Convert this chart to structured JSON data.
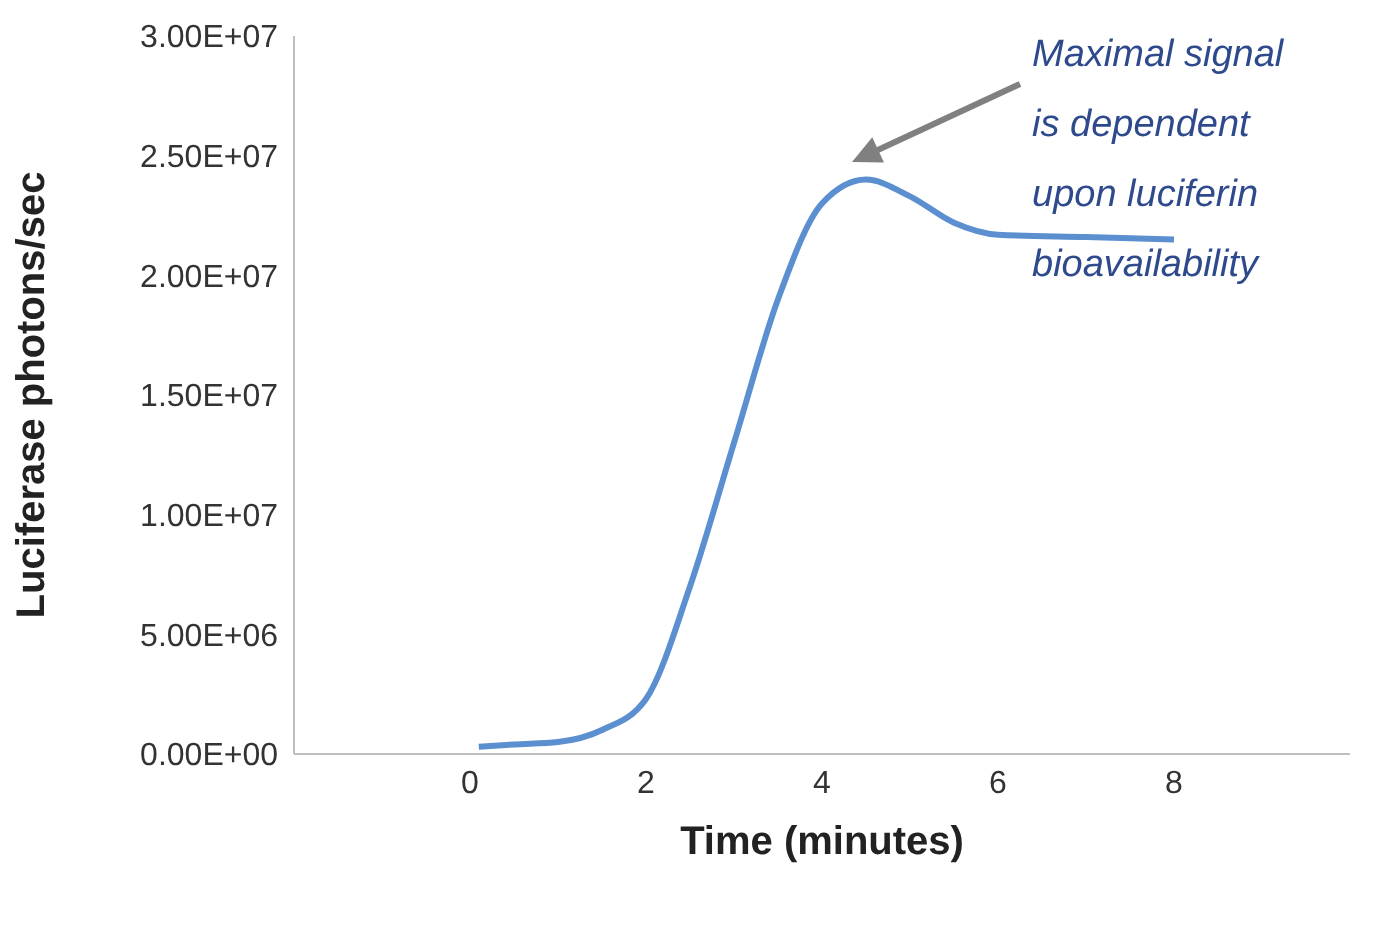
{
  "chart_data": {
    "type": "line",
    "xlabel": "Time (minutes)",
    "ylabel": "Luciferase photons/sec",
    "x": [
      0.1,
      0.5,
      1,
      1.5,
      2,
      2.5,
      3,
      3.5,
      4,
      4.5,
      5,
      5.5,
      6,
      7,
      8
    ],
    "series": [
      {
        "color": "#5b8fd0",
        "values": [
          300000,
          400000,
          500000,
          1000000,
          2300000,
          7000000,
          13000000,
          19000000,
          23000000,
          24000000,
          23300000,
          22200000,
          21700000,
          21600000,
          21500000
        ]
      }
    ],
    "xlim": [
      -2,
      10
    ],
    "xticks": [
      0,
      2,
      4,
      6,
      8
    ],
    "ylim": [
      0,
      30000000
    ],
    "yticks": [
      {
        "value": 0,
        "label": "0.00E+00"
      },
      {
        "value": 5000000,
        "label": "5.00E+06"
      },
      {
        "value": 10000000,
        "label": "1.00E+07"
      },
      {
        "value": 15000000,
        "label": "1.50E+07"
      },
      {
        "value": 20000000,
        "label": "2.00E+07"
      },
      {
        "value": 25000000,
        "label": "2.50E+07"
      },
      {
        "value": 30000000,
        "label": "3.00E+07"
      }
    ],
    "grid": false,
    "legend": false,
    "marker": "none",
    "line_style": "solid",
    "annotations": [
      "Maximal signal is dependent upon luciferin bioavailability"
    ]
  }
}
